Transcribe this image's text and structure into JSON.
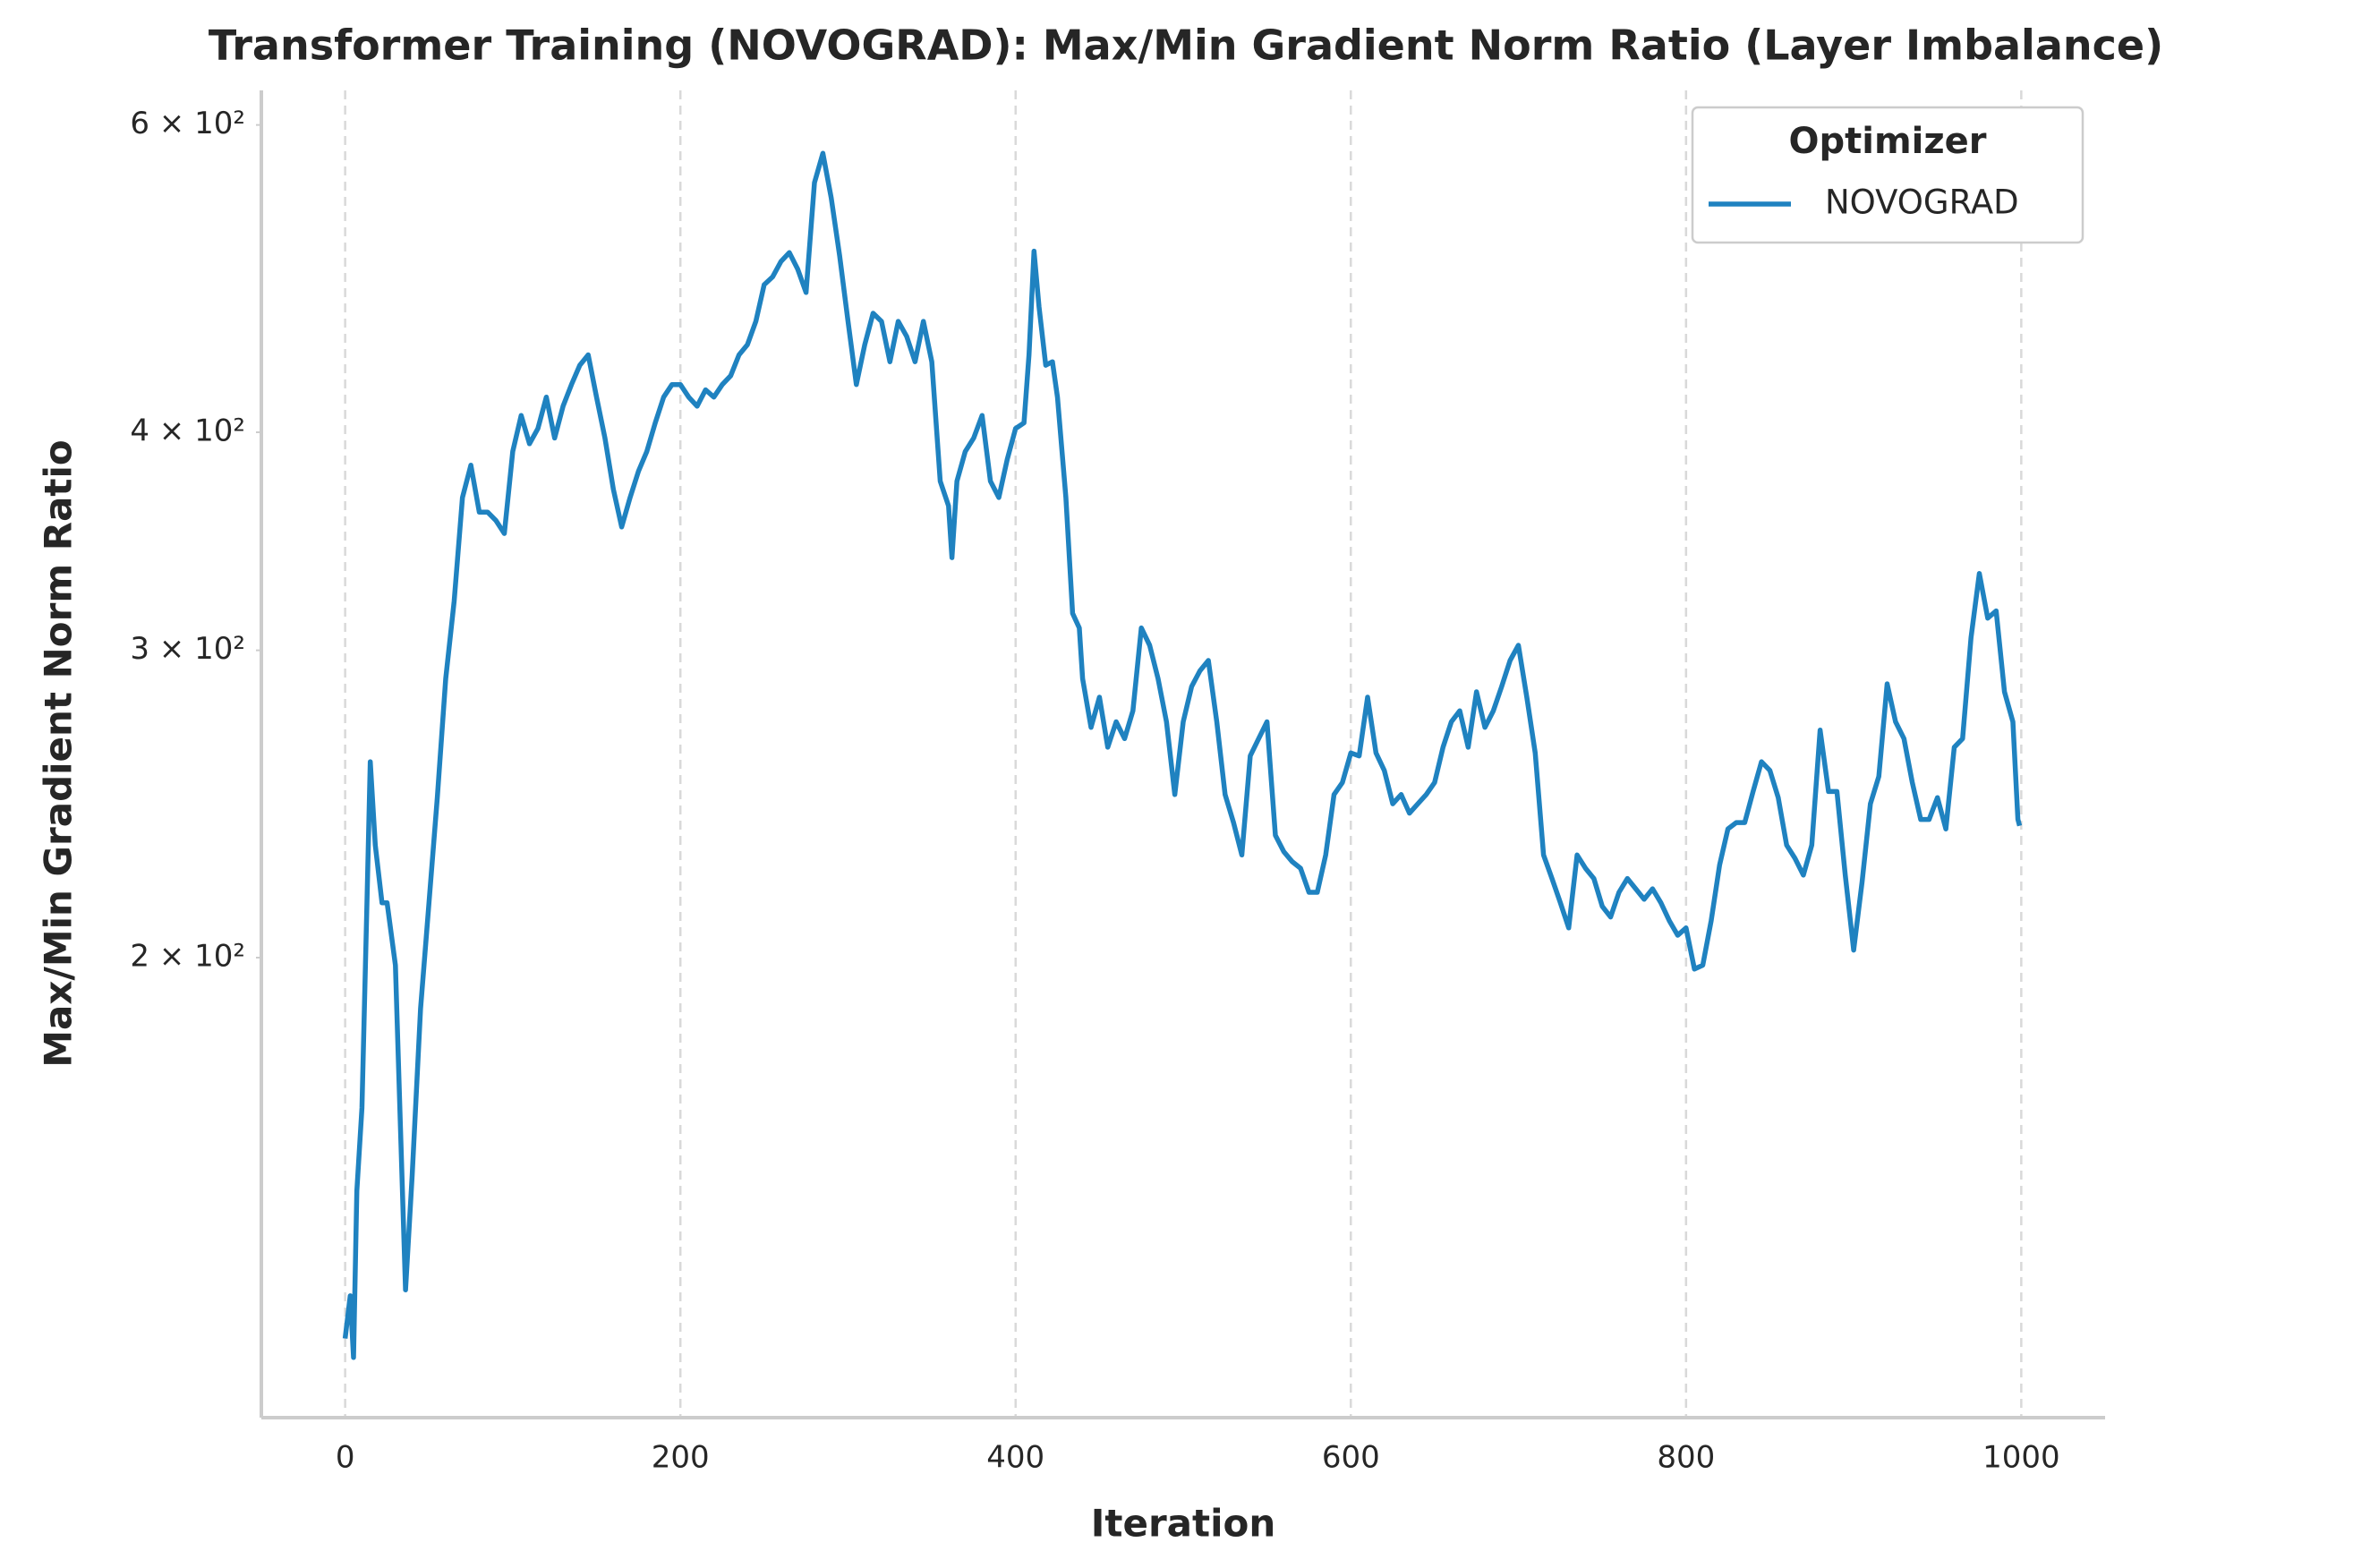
{
  "chart_data": {
    "type": "line",
    "title": "Transformer Training (NOVOGRAD): Max/Min Gradient Norm Ratio (Layer Imbalance)",
    "xlabel": "Iteration",
    "ylabel": "Max/Min Gradient Norm Ratio",
    "x": [
      0,
      3,
      5,
      7,
      10,
      13,
      15,
      18,
      22,
      25,
      30,
      33,
      36,
      40,
      45,
      50,
      55,
      60,
      65,
      70,
      75,
      80,
      85,
      90,
      95,
      100,
      105,
      110,
      115,
      120,
      125,
      130,
      135,
      140,
      145,
      150,
      155,
      160,
      165,
      170,
      175,
      180,
      185,
      190,
      195,
      200,
      205,
      210,
      215,
      220,
      225,
      230,
      235,
      240,
      245,
      250,
      255,
      260,
      265,
      270,
      275,
      280,
      285,
      290,
      295,
      300,
      305,
      310,
      315,
      320,
      325,
      330,
      335,
      340,
      345,
      350,
      355,
      360,
      362,
      365,
      370,
      375,
      380,
      385,
      390,
      395,
      400,
      405,
      408,
      411,
      414,
      418,
      422,
      425,
      430,
      434,
      438,
      440,
      445,
      450,
      455,
      460,
      465,
      470,
      475,
      480,
      485,
      490,
      495,
      500,
      505,
      510,
      515,
      520,
      525,
      530,
      535,
      540,
      545,
      550,
      555,
      560,
      565,
      570,
      575,
      580,
      585,
      590,
      595,
      600,
      605,
      610,
      615,
      620,
      625,
      630,
      635,
      640,
      645,
      650,
      655,
      660,
      665,
      670,
      675,
      680,
      685,
      690,
      695,
      700,
      705,
      710,
      715,
      720,
      725,
      730,
      735,
      740,
      745,
      750,
      755,
      760,
      765,
      770,
      775,
      780,
      785,
      790,
      795,
      800,
      805,
      810,
      815,
      820,
      825,
      830,
      835,
      840,
      845,
      850,
      855,
      860,
      865,
      870,
      875,
      880,
      885,
      890,
      895,
      900,
      905,
      910,
      915,
      920,
      925,
      930,
      935,
      940,
      945,
      950,
      955,
      960,
      965,
      970,
      975,
      980,
      985,
      990,
      995,
      998,
      999
    ],
    "series": [
      {
        "name": "NOVOGRAD",
        "color": "#1f82c0",
        "values": [
          121,
          128,
          118,
          147,
          164,
          215,
          259,
          232,
          215,
          215,
          198,
          160,
          129,
          150,
          187,
          215,
          247,
          289,
          320,
          367,
          383,
          360,
          360,
          356,
          350,
          390,
          409,
          394,
          402,
          419,
          397,
          414,
          426,
          437,
          443,
          419,
          397,
          371,
          353,
          367,
          380,
          390,
          405,
          419,
          426,
          426,
          419,
          414,
          423,
          419,
          426,
          431,
          443,
          449,
          463,
          486,
          491,
          501,
          507,
          496,
          481,
          556,
          578,
          545,
          505,
          463,
          426,
          449,
          468,
          463,
          439,
          463,
          454,
          439,
          463,
          439,
          375,
          363,
          339,
          375,
          390,
          397,
          409,
          375,
          367,
          386,
          402,
          405,
          443,
          508,
          472,
          437,
          439,
          419,
          367,
          315,
          309,
          289,
          271,
          282,
          264,
          273,
          267,
          277,
          309,
          302,
          289,
          273,
          248,
          273,
          286,
          292,
          296,
          273,
          248,
          239,
          229,
          261,
          267,
          273,
          235,
          230,
          227,
          225,
          218,
          218,
          229,
          248,
          252,
          262,
          261,
          282,
          262,
          256,
          245,
          248,
          242,
          245,
          248,
          252,
          264,
          273,
          277,
          264,
          284,
          271,
          277,
          286,
          296,
          302,
          282,
          262,
          229,
          222,
          215,
          208,
          229,
          225,
          222,
          214,
          211,
          218,
          222,
          219,
          216,
          219,
          215,
          210,
          206,
          208,
          197,
          198,
          210,
          226,
          237,
          239,
          239,
          249,
          259,
          256,
          247,
          232,
          228,
          223,
          232,
          270,
          249,
          249,
          223,
          202,
          221,
          245,
          254,
          287,
          273,
          267,
          252,
          240,
          240,
          247,
          237,
          264,
          267,
          305,
          332,
          313,
          316,
          284,
          273,
          240,
          238
        ]
      }
    ],
    "xlim": [
      -50,
      1050
    ],
    "ylim": [
      109,
      628
    ],
    "log_y": true,
    "xticks": [
      0,
      200,
      400,
      600,
      800,
      1000
    ],
    "yticks": [
      {
        "value": 200,
        "label": "2 × 10²"
      },
      {
        "value": 300,
        "label": "3 × 10²"
      },
      {
        "value": 400,
        "label": "4 × 10²"
      },
      {
        "value": 600,
        "label": "6 × 10²"
      }
    ],
    "grid_x": true,
    "legend_title": "Optimizer",
    "legend_loc": "upper right"
  }
}
